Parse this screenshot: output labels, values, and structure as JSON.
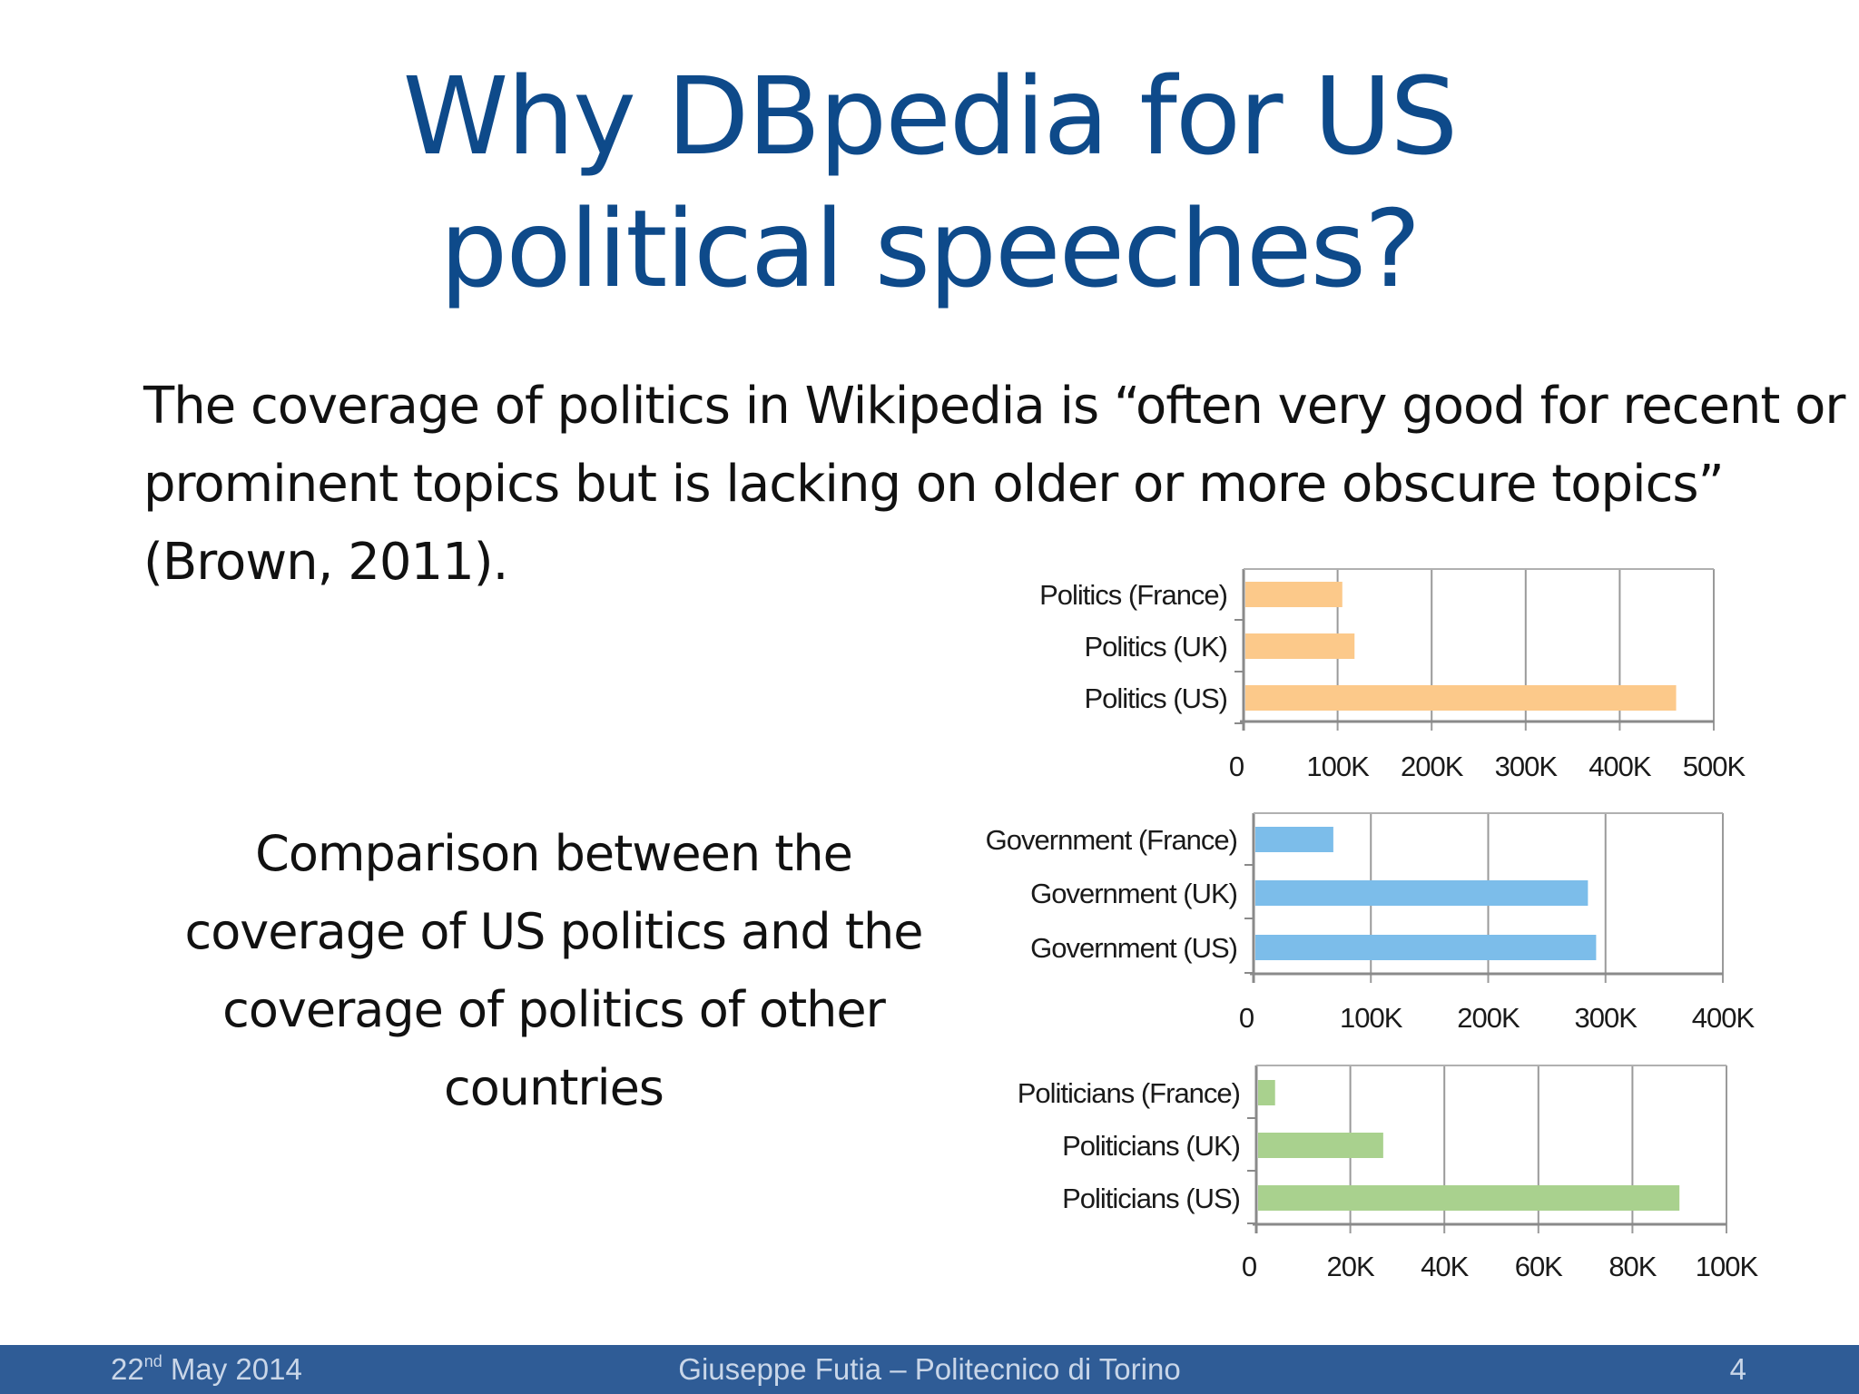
{
  "slide": {
    "title_lines": [
      "Why DBpedia for US",
      "political speeches?"
    ],
    "quote_lines": [
      "The coverage of politics in Wikipedia is “often very good for recent or",
      "prominent topics but is lacking on older or more obscure topics”",
      "(Brown, 2011)."
    ],
    "caption_lines": [
      "Comparison between the",
      "coverage of US politics and the",
      "coverage of politics of other",
      "countries"
    ]
  },
  "footer": {
    "date_day": "22",
    "date_suffix": "nd",
    "date_rest": " May 2014",
    "author": "Giuseppe Futia – Politecnico di Torino",
    "page": "4"
  },
  "colors": {
    "title": "#0e4a8a",
    "footer_bg": "#2f5c96"
  },
  "chart_data": [
    {
      "type": "bar",
      "orientation": "horizontal",
      "categories": [
        "Politics (France)",
        "Politics (UK)",
        "Politics (US)"
      ],
      "values": [
        105000,
        118000,
        460000
      ],
      "xlim": [
        0,
        500000
      ],
      "tick_labels": [
        "0",
        "100K",
        "200K",
        "300K",
        "400K",
        "500K"
      ],
      "color": "#fcc98a",
      "grid": true
    },
    {
      "type": "bar",
      "orientation": "horizontal",
      "categories": [
        "Government (France)",
        "Government (UK)",
        "Government (US)"
      ],
      "values": [
        68000,
        285000,
        292000
      ],
      "xlim": [
        0,
        400000
      ],
      "tick_labels": [
        "0",
        "100K",
        "200K",
        "300K",
        "400K"
      ],
      "color": "#7cbdea",
      "grid": true
    },
    {
      "type": "bar",
      "orientation": "horizontal",
      "categories": [
        "Politicians (France)",
        "Politicians (UK)",
        "Politicians (US)"
      ],
      "values": [
        4000,
        27000,
        90000
      ],
      "xlim": [
        0,
        100000
      ],
      "tick_labels": [
        "0",
        "20K",
        "40K",
        "60K",
        "80K",
        "100K"
      ],
      "color": "#a9d18e",
      "grid": true
    }
  ]
}
